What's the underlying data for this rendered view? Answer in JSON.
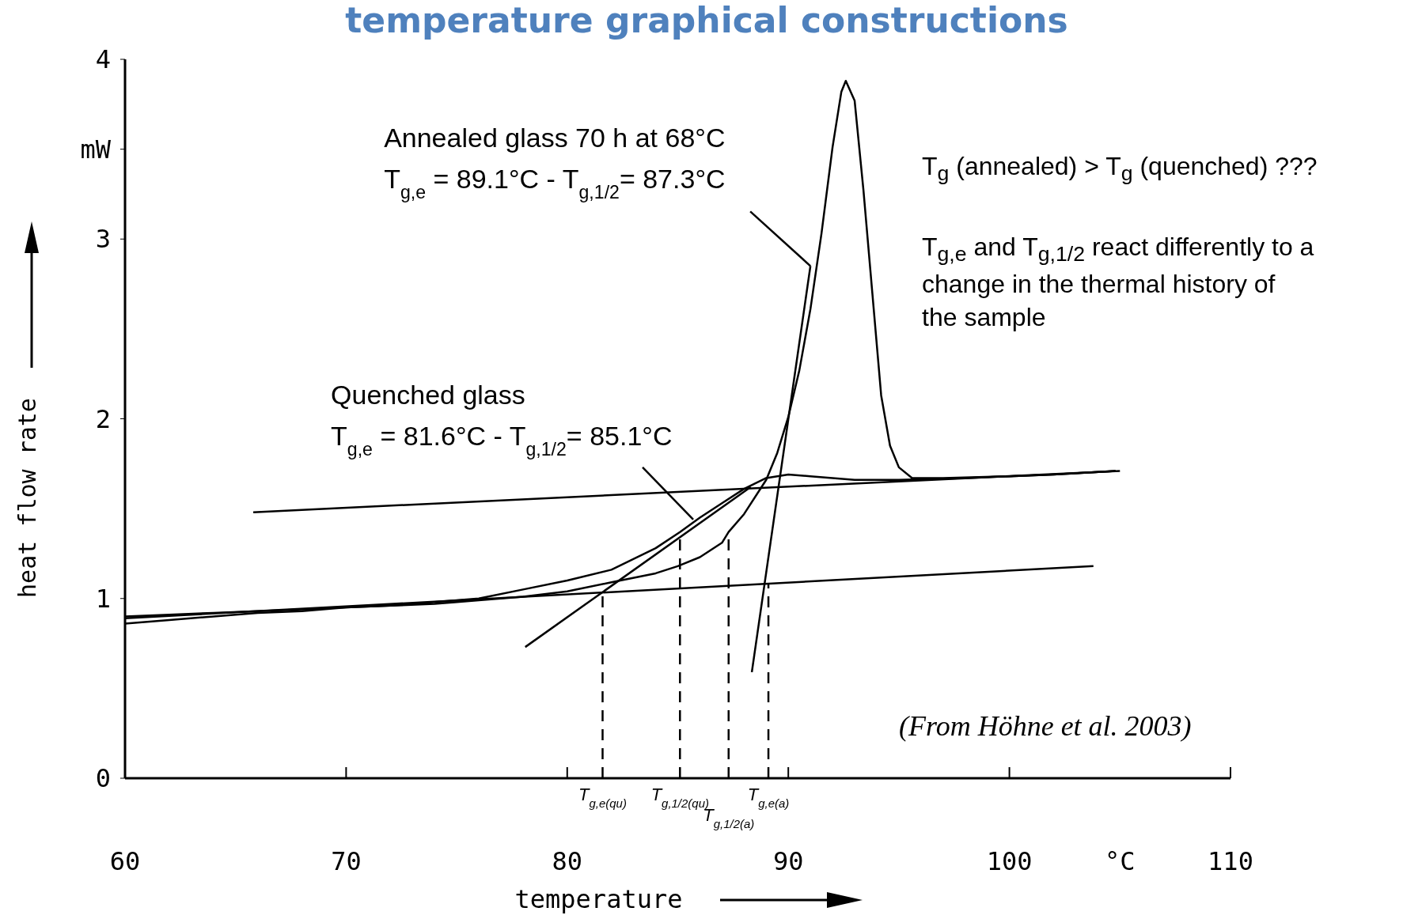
{
  "chart_data": {
    "type": "line",
    "title": "temperature graphical constructions",
    "xlabel": "temperature",
    "ylabel": "heat flow rate",
    "xlim": [
      60,
      110
    ],
    "xticks": [
      60,
      70,
      80,
      90,
      100,
      {
        "value": 105,
        "label": "°C"
      },
      110
    ],
    "ylim": [
      0,
      4
    ],
    "yticks": [
      0,
      1,
      2,
      3,
      {
        "value": 3.5,
        "label": "mW"
      },
      4
    ],
    "grid": false,
    "marker": "none",
    "series": [
      {
        "color": "#000000",
        "line_style": "solid",
        "x": [
          60,
          62,
          64,
          66,
          68,
          70,
          72,
          74,
          76,
          78,
          80,
          82,
          84,
          85.1,
          86,
          87,
          88,
          89,
          90,
          91,
          92,
          93,
          95,
          98,
          100,
          102,
          104.8
        ],
        "values": [
          0.9,
          0.91,
          0.92,
          0.93,
          0.94,
          0.95,
          0.96,
          0.98,
          1.0,
          1.05,
          1.1,
          1.16,
          1.28,
          1.37,
          1.45,
          1.53,
          1.61,
          1.67,
          1.69,
          1.68,
          1.67,
          1.66,
          1.66,
          1.67,
          1.68,
          1.69,
          1.71
        ]
      },
      {
        "color": "#000000",
        "line_style": "solid",
        "x": [
          60,
          62,
          64,
          66,
          68,
          70,
          72,
          74,
          76,
          78,
          80,
          82,
          84,
          85,
          86,
          87,
          87.3,
          88,
          89,
          89.5,
          90,
          90.5,
          91,
          91.5,
          92,
          92.4,
          92.6,
          93,
          93.4,
          93.8,
          94.2,
          94.6,
          95,
          95.6,
          97,
          100,
          102,
          104.8
        ],
        "values": [
          0.86,
          0.88,
          0.9,
          0.92,
          0.93,
          0.95,
          0.96,
          0.97,
          0.99,
          1.01,
          1.04,
          1.09,
          1.14,
          1.18,
          1.23,
          1.31,
          1.37,
          1.47,
          1.66,
          1.81,
          2.01,
          2.27,
          2.61,
          3.03,
          3.51,
          3.82,
          3.88,
          3.77,
          3.27,
          2.7,
          2.13,
          1.85,
          1.73,
          1.67,
          1.67,
          1.68,
          1.69,
          1.71
        ]
      },
      {
        "color": "#000000",
        "line_style": "solid",
        "x": [
          60,
          103.8
        ],
        "values": [
          0.89,
          1.18
        ]
      },
      {
        "color": "#000000",
        "line_style": "solid",
        "x": [
          65.8,
          105
        ],
        "values": [
          1.48,
          1.71
        ]
      },
      {
        "color": "#000000",
        "line_style": "solid",
        "x": [
          78.1,
          88.3
        ],
        "values": [
          0.73,
          1.62
        ]
      },
      {
        "color": "#000000",
        "line_style": "solid",
        "x": [
          88.35,
          91.0
        ],
        "values": [
          0.59,
          2.85
        ]
      },
      {
        "color": "#000000",
        "line_style": "dashed",
        "x": [
          81.6,
          81.6
        ],
        "values": [
          0,
          1.03
        ]
      },
      {
        "color": "#000000",
        "line_style": "dashed",
        "x": [
          85.1,
          85.1
        ],
        "values": [
          0,
          1.37
        ]
      },
      {
        "color": "#000000",
        "line_style": "dashed",
        "x": [
          87.3,
          87.3
        ],
        "values": [
          0,
          1.37
        ]
      },
      {
        "color": "#000000",
        "line_style": "dashed",
        "x": [
          89.1,
          89.1
        ],
        "values": [
          0,
          1.08
        ]
      }
    ],
    "annotations": [
      {
        "text": "Annealed glass 70 h at 68°C\nT$_{g,e}$ = 89.1°C - T$_{g,1/2}$= 87.3°C",
        "x": 91.0,
        "y": 2.85
      },
      {
        "text": "Quenched glass\nT$_{g,e}$ = 81.6°C - T$_{g,1/2}$= 85.1°C",
        "x": 85.7,
        "y": 1.44
      },
      {
        "text": "T$_{g,e(qu)}$",
        "x": 81.6,
        "y": 0
      },
      {
        "text": "T$_{g,1/2(qu)}$",
        "x": 85.1,
        "y": 0
      },
      {
        "text": "T$_{g,1/2(a)}$",
        "x": 87.3,
        "y": 0
      },
      {
        "text": "T$_{g,e(a)}$",
        "x": 89.1,
        "y": 0
      },
      "T$_{g}$ (annealed) > T$_{g}$ (quenched) ???",
      "T$_{g,e}$ and T$_{g,1/2}$ react differently to a\nchange in the thermal history of\nthe sample",
      "(From Höhne et al. 2003)"
    ]
  }
}
